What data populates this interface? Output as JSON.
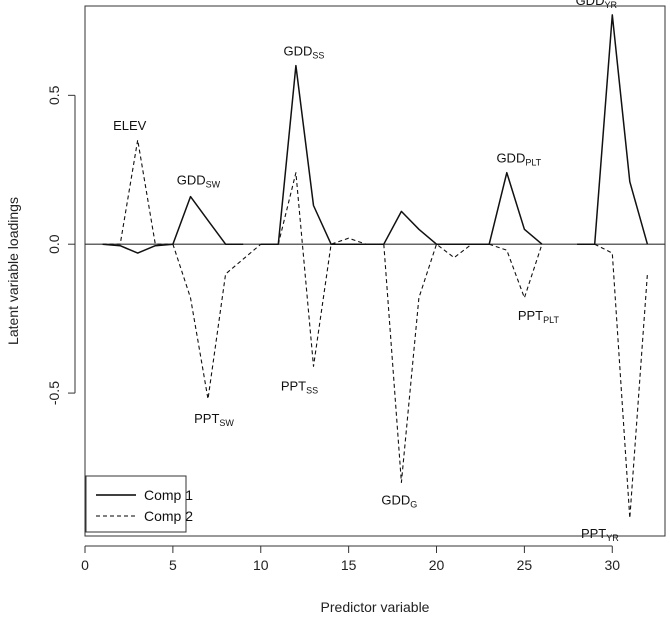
{
  "chart_data": {
    "type": "line",
    "title": "",
    "xlabel": "Predictor variable",
    "ylabel": "Latent variable loadings",
    "xlim": [
      0,
      33
    ],
    "ylim": [
      -0.98,
      0.8
    ],
    "x_ticks": [
      0,
      5,
      10,
      15,
      20,
      25,
      30
    ],
    "y_ticks": [
      0.5,
      0.0,
      -0.5
    ],
    "y_tick_labels": [
      "0.5",
      "0.0",
      "-0.5"
    ],
    "zero_line": true,
    "grid": false,
    "legend_position": "bottom-left",
    "series": [
      {
        "name": "Comp 1",
        "style": "solid",
        "segments": [
          [
            [
              1,
              0.0
            ],
            [
              2,
              -0.005
            ],
            [
              3,
              -0.03
            ],
            [
              4,
              -0.005
            ],
            [
              5,
              0.0
            ]
          ],
          [
            [
              5,
              0.0
            ],
            [
              6,
              0.16
            ],
            [
              7,
              0.08
            ],
            [
              8,
              0.0
            ],
            [
              9,
              0.0
            ]
          ],
          [
            [
              10,
              0.0
            ],
            [
              11,
              0.0
            ],
            [
              12,
              0.6
            ],
            [
              13,
              0.13
            ],
            [
              14,
              0.0
            ],
            [
              15,
              0.0
            ],
            [
              16,
              0.0
            ],
            [
              17,
              0.0
            ]
          ],
          [
            [
              17,
              0.0
            ],
            [
              18,
              0.11
            ],
            [
              19,
              0.05
            ],
            [
              20,
              0.0
            ],
            [
              21,
              0.0
            ],
            [
              22,
              0.0
            ],
            [
              23,
              0.0
            ]
          ],
          [
            [
              23,
              0.0
            ],
            [
              24,
              0.24
            ],
            [
              25,
              0.05
            ],
            [
              26,
              0.0
            ]
          ],
          [
            [
              28,
              0.0
            ],
            [
              29,
              0.0
            ],
            [
              30,
              0.77
            ],
            [
              31,
              0.21
            ],
            [
              32,
              0.0
            ]
          ]
        ]
      },
      {
        "name": "Comp 2",
        "style": "dashed",
        "segments": [
          [
            [
              1,
              0.0
            ],
            [
              2,
              0.0
            ],
            [
              3,
              0.35
            ],
            [
              4,
              0.0
            ],
            [
              5,
              0.0
            ]
          ],
          [
            [
              5,
              0.0
            ],
            [
              6,
              -0.18
            ],
            [
              7,
              -0.52
            ],
            [
              8,
              -0.1
            ],
            [
              9,
              -0.05
            ],
            [
              10,
              0.0
            ]
          ],
          [
            [
              11,
              0.0
            ],
            [
              12,
              0.24
            ],
            [
              13,
              -0.41
            ],
            [
              14,
              0.0
            ],
            [
              15,
              0.02
            ],
            [
              16,
              0.0
            ],
            [
              17,
              0.0
            ]
          ],
          [
            [
              17,
              0.0
            ],
            [
              18,
              -0.8
            ],
            [
              19,
              -0.18
            ],
            [
              20,
              0.0
            ],
            [
              21,
              -0.045
            ],
            [
              22,
              0.0
            ],
            [
              23,
              0.0
            ]
          ],
          [
            [
              23,
              0.0
            ],
            [
              24,
              -0.02
            ],
            [
              25,
              -0.18
            ],
            [
              26,
              0.0
            ]
          ],
          [
            [
              29,
              0.0
            ],
            [
              30,
              -0.03
            ],
            [
              31,
              -0.92
            ],
            [
              32,
              -0.1
            ]
          ]
        ]
      }
    ],
    "annotations": [
      {
        "main": "ELEV",
        "sub": "",
        "x": 3,
        "y": 0.35
      },
      {
        "main": "GDD",
        "sub": "SW",
        "x": 6,
        "y": 0.16
      },
      {
        "main": "PPT",
        "sub": "SW",
        "x": 7,
        "y": -0.52
      },
      {
        "main": "GDD",
        "sub": "SS",
        "x": 12,
        "y": 0.6
      },
      {
        "main": "PPT",
        "sub": "SS",
        "x": 13,
        "y": -0.41
      },
      {
        "main": "GDD",
        "sub": "G",
        "x": 18,
        "y": -0.8
      },
      {
        "main": "GDD",
        "sub": "PLT",
        "x": 24,
        "y": 0.24
      },
      {
        "main": "PPT",
        "sub": "PLT",
        "x": 25,
        "y": -0.18
      },
      {
        "main": "GDD",
        "sub": "YR",
        "x": 30,
        "y": 0.77
      },
      {
        "main": "PPT",
        "sub": "YR",
        "x": 31,
        "y": -0.92
      }
    ],
    "legend": [
      {
        "label": "Comp 1",
        "style": "solid"
      },
      {
        "label": "Comp 2",
        "style": "dashed"
      }
    ]
  }
}
